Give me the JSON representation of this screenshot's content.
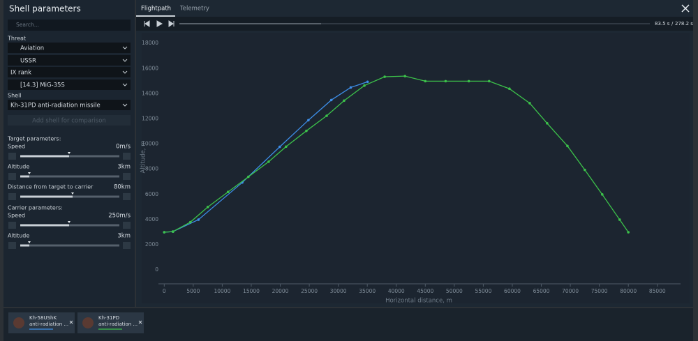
{
  "panel": {
    "title": "Shell parameters",
    "search_placeholder": "Search...",
    "threat_label": "Threat",
    "threat": [
      "Aviation",
      "USSR",
      "IX rank",
      "[14.3] MiG-35S"
    ],
    "shell_label": "Shell",
    "shell": "Kh-31PD anti-radiation missile",
    "add_shell": "Add shell for comparison",
    "target_label": "Target parameters:",
    "target": [
      {
        "label": "Speed",
        "value": "0m/s"
      },
      {
        "label": "Altitude",
        "value": "3km"
      },
      {
        "label": "Distance from target to carrier",
        "value": "80km"
      }
    ],
    "carrier_label": "Carrier parameters:",
    "carrier": [
      {
        "label": "Speed",
        "value": "250m/s"
      },
      {
        "label": "Altitude",
        "value": "3km"
      }
    ]
  },
  "tabs": [
    "Flightpath",
    "Telemetry"
  ],
  "player": {
    "current": "83.5 s",
    "separator": "/",
    "total": "278.2 s"
  },
  "cards": [
    {
      "subtitle": "anti-radiation ..."
    },
    {
      "subtitle": "anti-radiation ..."
    }
  ],
  "chart_data": {
    "type": "line",
    "xlabel": "Horizontal distance, m",
    "ylabel": "Altitude, m",
    "xlim": [
      -1000,
      89000
    ],
    "ylim": [
      -1100,
      18400
    ],
    "xticks": [
      0,
      5000,
      10000,
      15000,
      20000,
      25000,
      30000,
      35000,
      40000,
      45000,
      50000,
      55000,
      60000,
      65000,
      70000,
      75000,
      80000,
      85000
    ],
    "yticks": [
      0,
      2000,
      4000,
      6000,
      8000,
      10000,
      12000,
      14000,
      16000,
      18000
    ],
    "series": [
      {
        "name": "Kh-58UShK",
        "color": "#3d8ee8",
        "x": [
          0,
          1500,
          5900,
          13450,
          19900,
          24850,
          28800,
          32150,
          35050
        ],
        "values": [
          3000,
          3050,
          4000,
          6950,
          9780,
          11900,
          13500,
          14500,
          14950
        ]
      },
      {
        "name": "Kh-31PD",
        "color": "#3cc24a",
        "x": [
          0,
          1500,
          4500,
          7500,
          11000,
          14500,
          18000,
          21000,
          24500,
          28000,
          31000,
          34500,
          38000,
          41500,
          45000,
          48500,
          52500,
          56000,
          59500,
          63000,
          66000,
          69500,
          72500,
          75500,
          78500,
          80000
        ],
        "values": [
          3000,
          3050,
          3800,
          5000,
          6200,
          7400,
          8600,
          9800,
          11050,
          12250,
          13450,
          14650,
          15350,
          15400,
          15000,
          15000,
          15000,
          15000,
          14400,
          13250,
          11650,
          9850,
          7950,
          6000,
          4000,
          3000
        ]
      }
    ]
  }
}
